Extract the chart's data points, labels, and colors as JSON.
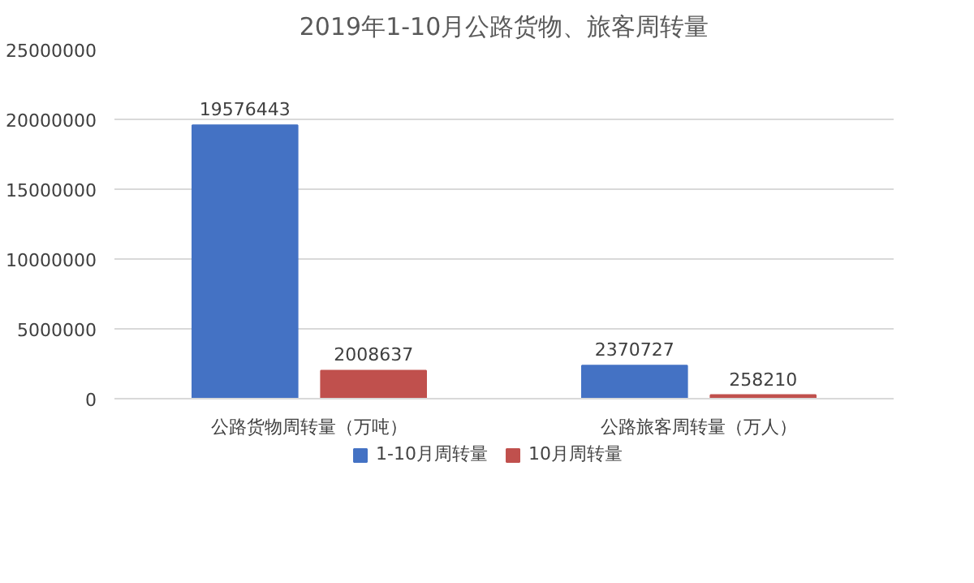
{
  "chart_data": {
    "type": "bar",
    "title": "2019年1-10月公路货物、旅客周转量",
    "categories": [
      "公路货物周转量（万吨）",
      "公路旅客周转量（万人）"
    ],
    "series": [
      {
        "name": "1-10月周转量",
        "color": "#4472c4",
        "values": [
          19576443,
          2370727
        ]
      },
      {
        "name": "10月周转量",
        "color": "#c0504d",
        "values": [
          2008637,
          258210
        ]
      }
    ],
    "ylim": [
      0,
      25000000
    ],
    "yticks": [
      0,
      5000000,
      10000000,
      15000000,
      20000000,
      25000000
    ],
    "grid": "y",
    "legend": "bottom",
    "data_labels": true
  }
}
